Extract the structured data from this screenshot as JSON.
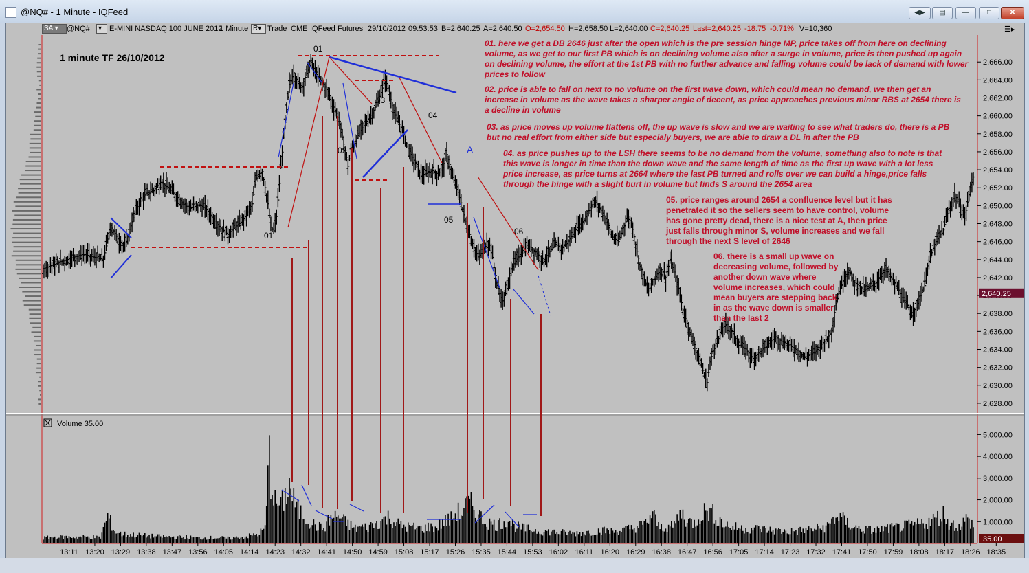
{
  "window": {
    "title": "@NQ# - 1 Minute - IQFeed"
  },
  "toolbar": {
    "sa": "SA",
    "symbol": "@NQ#",
    "description": "E-MINI NASDAQ 100 JUNE 2012",
    "interval": "1 Minute",
    "r_box": "R",
    "trade": "Trade",
    "exchange": "CME",
    "feed": "IQFeed",
    "type": "Futures",
    "date": "29/10/2012",
    "time": "09:53:53",
    "bid": "B=2,640.25",
    "ask": "A=2,640.50",
    "open": "O=2,654.50",
    "high": "H=2,658.50",
    "low": "L=2,640.00",
    "close": "C=2,640.25",
    "last": "Last=2,640.25",
    "change": "-18.75",
    "change_pct": "-0.71%",
    "volume": "V=10,360"
  },
  "colors": {
    "up_text": "#c00000",
    "note_text": "#c0102a",
    "price_tag": "#6b0f2e",
    "frame_red": "#d02020",
    "trend_blue": "#1f2fd8"
  },
  "chart_data": [
    {
      "type": "ohlc",
      "title": "1 minute  TF 26/10/2012",
      "ylim": [
        2627,
        2669
      ],
      "y_ticks": [
        "2,628.00",
        "2,630.00",
        "2,632.00",
        "2,634.00",
        "2,636.00",
        "2,638.00",
        "2,640.00",
        "2,642.00",
        "2,644.00",
        "2,646.00",
        "2,648.00",
        "2,650.00",
        "2,652.00",
        "2,654.00",
        "2,656.00",
        "2,658.00",
        "2,660.00",
        "2,662.00",
        "2,664.00",
        "2,666.00"
      ],
      "x_ticks": [
        "13:11",
        "13:20",
        "13:29",
        "13:38",
        "13:47",
        "13:56",
        "14:05",
        "14:14",
        "14:23",
        "14:32",
        "14:41",
        "14:50",
        "14:59",
        "15:08",
        "15:17",
        "15:26",
        "15:35",
        "15:44",
        "15:53",
        "16:02",
        "16:11",
        "16:20",
        "16:29",
        "16:38",
        "16:47",
        "16:56",
        "17:05",
        "17:14",
        "17:23",
        "17:32",
        "17:41",
        "17:50",
        "17:59",
        "18:08",
        "18:17",
        "18:26",
        "18:35"
      ],
      "last_price": "2,640.25",
      "close_path": [
        [
          0,
          2643.0
        ],
        [
          10,
          2643.6
        ],
        [
          20,
          2644.2
        ],
        [
          28,
          2644.6
        ],
        [
          35,
          2644.3
        ],
        [
          42,
          2644.0
        ],
        [
          47,
          2647.8
        ],
        [
          52,
          2646.3
        ],
        [
          57,
          2645.4
        ],
        [
          62,
          2648.2
        ],
        [
          67,
          2650.3
        ],
        [
          72,
          2651.4
        ],
        [
          77,
          2651.7
        ],
        [
          82,
          2652.6
        ],
        [
          86,
          2652.2
        ],
        [
          91,
          2651.4
        ],
        [
          97,
          2650.4
        ],
        [
          103,
          2649.7
        ],
        [
          109,
          2650.1
        ],
        [
          114,
          2649.6
        ],
        [
          119,
          2648.5
        ],
        [
          124,
          2647.5
        ],
        [
          129,
          2646.8
        ],
        [
          134,
          2647.6
        ],
        [
          139,
          2648.3
        ],
        [
          142,
          2649.0
        ],
        [
          146,
          2650.2
        ],
        [
          149,
          2653.4
        ],
        [
          153,
          2653.8
        ],
        [
          157,
          2650.2
        ],
        [
          159,
          2647.6
        ],
        [
          161,
          2647.2
        ],
        [
          163,
          2648.8
        ],
        [
          166,
          2654.3
        ],
        [
          169,
          2659.3
        ],
        [
          172,
          2663.5
        ],
        [
          175,
          2664.8
        ],
        [
          178,
          2663.6
        ],
        [
          181,
          2663.3
        ],
        [
          183,
          2664.3
        ],
        [
          185,
          2665.2
        ],
        [
          187,
          2666.0
        ],
        [
          189,
          2665.3
        ],
        [
          191,
          2664.6
        ],
        [
          193,
          2664.1
        ],
        [
          196,
          2663.5
        ],
        [
          199,
          2662.7
        ],
        [
          202,
          2661.3
        ],
        [
          205,
          2660.3
        ],
        [
          207,
          2659.4
        ],
        [
          209,
          2657.6
        ],
        [
          212,
          2655.4
        ],
        [
          213,
          2654.4
        ],
        [
          215,
          2656.0
        ],
        [
          218,
          2657.2
        ],
        [
          222,
          2658.4
        ],
        [
          226,
          2659.4
        ],
        [
          230,
          2660.3
        ],
        [
          233,
          2661.3
        ],
        [
          236,
          2662.6
        ],
        [
          239,
          2664.1
        ],
        [
          241,
          2663.1
        ],
        [
          243,
          2661.8
        ],
        [
          245,
          2660.4
        ],
        [
          248,
          2659.4
        ],
        [
          251,
          2658.4
        ],
        [
          255,
          2656.4
        ],
        [
          258,
          2655.4
        ],
        [
          261,
          2654.4
        ],
        [
          264,
          2653.4
        ],
        [
          268,
          2653.6
        ],
        [
          272,
          2653.9
        ],
        [
          276,
          2653.5
        ],
        [
          279,
          2654.2
        ],
        [
          282,
          2655.7
        ],
        [
          284,
          2654.6
        ],
        [
          286,
          2653.2
        ],
        [
          289,
          2652.1
        ],
        [
          292,
          2650.3
        ],
        [
          295,
          2648.3
        ],
        [
          298,
          2646.8
        ],
        [
          301,
          2645.3
        ],
        [
          304,
          2644.3
        ],
        [
          307,
          2644.9
        ],
        [
          310,
          2646.0
        ],
        [
          313,
          2645.4
        ],
        [
          315,
          2643.1
        ],
        [
          317,
          2641.4
        ],
        [
          319,
          2640.2
        ],
        [
          321,
          2639.4
        ],
        [
          323,
          2640.2
        ],
        [
          325,
          2641.4
        ],
        [
          327,
          2643.0
        ],
        [
          330,
          2643.8
        ],
        [
          334,
          2644.8
        ],
        [
          338,
          2645.6
        ],
        [
          342,
          2645.2
        ],
        [
          346,
          2644.5
        ],
        [
          350,
          2644.0
        ],
        [
          354,
          2644.9
        ],
        [
          358,
          2645.7
        ],
        [
          362,
          2645.3
        ],
        [
          366,
          2645.8
        ],
        [
          370,
          2646.8
        ],
        [
          374,
          2647.8
        ],
        [
          378,
          2648.4
        ],
        [
          382,
          2649.8
        ],
        [
          386,
          2650.4
        ],
        [
          390,
          2649.5
        ],
        [
          394,
          2648.2
        ],
        [
          398,
          2646.5
        ],
        [
          402,
          2646.0
        ],
        [
          405,
          2647.4
        ],
        [
          408,
          2648.6
        ],
        [
          411,
          2648.2
        ],
        [
          414,
          2645.7
        ],
        [
          417,
          2643.4
        ],
        [
          420,
          2641.8
        ],
        [
          423,
          2640.5
        ],
        [
          426,
          2641.5
        ],
        [
          429,
          2642.4
        ],
        [
          432,
          2642.9
        ],
        [
          435,
          2642.0
        ],
        [
          438,
          2643.9
        ],
        [
          441,
          2642.7
        ],
        [
          444,
          2640.8
        ],
        [
          447,
          2638.4
        ],
        [
          450,
          2636.9
        ],
        [
          453,
          2635.4
        ],
        [
          456,
          2634.1
        ],
        [
          459,
          2632.8
        ],
        [
          462,
          2631.1
        ],
        [
          464,
          2630.3
        ],
        [
          466,
          2632.6
        ],
        [
          469,
          2634.4
        ],
        [
          472,
          2635.2
        ],
        [
          475,
          2636.4
        ],
        [
          478,
          2636.8
        ],
        [
          481,
          2636.0
        ],
        [
          484,
          2635.2
        ],
        [
          488,
          2634.4
        ],
        [
          492,
          2633.8
        ],
        [
          496,
          2633.0
        ],
        [
          500,
          2633.6
        ],
        [
          504,
          2634.2
        ],
        [
          508,
          2634.8
        ],
        [
          512,
          2635.4
        ],
        [
          516,
          2634.9
        ],
        [
          520,
          2634.6
        ],
        [
          524,
          2634.2
        ],
        [
          528,
          2633.8
        ],
        [
          532,
          2633.1
        ],
        [
          536,
          2633.4
        ],
        [
          540,
          2633.8
        ],
        [
          544,
          2634.6
        ],
        [
          548,
          2635.2
        ],
        [
          551,
          2636.1
        ],
        [
          554,
          2639.1
        ],
        [
          557,
          2640.8
        ],
        [
          560,
          2642.1
        ],
        [
          563,
          2642.8
        ],
        [
          566,
          2641.6
        ],
        [
          570,
          2641.1
        ],
        [
          574,
          2640.6
        ],
        [
          578,
          2641.0
        ],
        [
          582,
          2641.4
        ],
        [
          586,
          2642.4
        ],
        [
          589,
          2642.9
        ],
        [
          592,
          2642.1
        ],
        [
          595,
          2641.3
        ],
        [
          598,
          2640.6
        ],
        [
          601,
          2639.4
        ],
        [
          604,
          2638.9
        ],
        [
          607,
          2638.1
        ],
        [
          610,
          2638.6
        ],
        [
          613,
          2640.0
        ],
        [
          616,
          2641.1
        ],
        [
          618,
          2643.3
        ],
        [
          620,
          2644.3
        ],
        [
          623,
          2645.7
        ],
        [
          626,
          2646.6
        ],
        [
          629,
          2647.3
        ],
        [
          632,
          2649.1
        ],
        [
          635,
          2650.3
        ],
        [
          637,
          2651.3
        ],
        [
          639,
          2650.5
        ],
        [
          642,
          2649.5
        ],
        [
          644,
          2648.6
        ],
        [
          646,
          2650.4
        ],
        [
          648,
          2652.0
        ],
        [
          650,
          2653.2
        ],
        [
          652,
          2652.5
        ]
      ],
      "annotations": [
        "01",
        "01",
        "02",
        "03",
        "04",
        "05",
        "06",
        "A"
      ]
    },
    {
      "type": "bar",
      "title": "Volume",
      "header_value": "35.00",
      "ylim": [
        0,
        5800
      ],
      "y_ticks": [
        "1,000.00",
        "2,000.00",
        "3,000.00",
        "4,000.00",
        "5,000.00"
      ],
      "last_value": "35.00",
      "volume_path": [
        [
          0,
          300
        ],
        [
          10,
          350
        ],
        [
          20,
          350
        ],
        [
          30,
          360
        ],
        [
          40,
          330
        ],
        [
          45,
          1480
        ],
        [
          50,
          660
        ],
        [
          55,
          500
        ],
        [
          60,
          480
        ],
        [
          70,
          420
        ],
        [
          80,
          380
        ],
        [
          90,
          350
        ],
        [
          100,
          340
        ],
        [
          110,
          300
        ],
        [
          120,
          320
        ],
        [
          130,
          280
        ],
        [
          140,
          350
        ],
        [
          150,
          500
        ],
        [
          155,
          800
        ],
        [
          158,
          4850
        ],
        [
          159,
          3500
        ],
        [
          162,
          2200
        ],
        [
          166,
          2000
        ],
        [
          169,
          2500
        ],
        [
          172,
          3200
        ],
        [
          175,
          2300
        ],
        [
          178,
          1800
        ],
        [
          182,
          1500
        ],
        [
          186,
          1200
        ],
        [
          190,
          950
        ],
        [
          196,
          800
        ],
        [
          200,
          1300
        ],
        [
          206,
          1500
        ],
        [
          210,
          1200
        ],
        [
          214,
          1000
        ],
        [
          218,
          800
        ],
        [
          222,
          900
        ],
        [
          226,
          850
        ],
        [
          230,
          1000
        ],
        [
          236,
          1200
        ],
        [
          241,
          1400
        ],
        [
          246,
          1150
        ],
        [
          250,
          950
        ],
        [
          255,
          900
        ],
        [
          260,
          850
        ],
        [
          265,
          800
        ],
        [
          270,
          900
        ],
        [
          275,
          850
        ],
        [
          280,
          1200
        ],
        [
          285,
          1300
        ],
        [
          289,
          1700
        ],
        [
          292,
          1600
        ],
        [
          295,
          2000
        ],
        [
          298,
          2150
        ],
        [
          301,
          1900
        ],
        [
          304,
          1600
        ],
        [
          307,
          1300
        ],
        [
          312,
          1100
        ],
        [
          316,
          1000
        ],
        [
          320,
          1100
        ],
        [
          325,
          1300
        ],
        [
          330,
          900
        ],
        [
          340,
          750
        ],
        [
          350,
          650
        ],
        [
          360,
          600
        ],
        [
          370,
          550
        ],
        [
          380,
          600
        ],
        [
          390,
          700
        ],
        [
          400,
          650
        ],
        [
          410,
          800
        ],
        [
          420,
          1000
        ],
        [
          426,
          1600
        ],
        [
          430,
          900
        ],
        [
          440,
          900
        ],
        [
          446,
          1700
        ],
        [
          450,
          1200
        ],
        [
          455,
          1100
        ],
        [
          460,
          1600
        ],
        [
          464,
          1800
        ],
        [
          468,
          1600
        ],
        [
          475,
          1100
        ],
        [
          480,
          900
        ],
        [
          490,
          800
        ],
        [
          500,
          800
        ],
        [
          510,
          700
        ],
        [
          520,
          650
        ],
        [
          530,
          700
        ],
        [
          540,
          800
        ],
        [
          548,
          900
        ],
        [
          552,
          1300
        ],
        [
          556,
          1500
        ],
        [
          560,
          1200
        ],
        [
          565,
          950
        ],
        [
          570,
          800
        ],
        [
          580,
          700
        ],
        [
          590,
          800
        ],
        [
          600,
          900
        ],
        [
          610,
          1000
        ],
        [
          620,
          1200
        ],
        [
          625,
          1400
        ],
        [
          629,
          1600
        ],
        [
          633,
          1100
        ],
        [
          640,
          900
        ],
        [
          645,
          1300
        ],
        [
          650,
          1000
        ]
      ]
    }
  ],
  "notes": [
    {
      "id": "01.",
      "text": "here we get a DB 2646 just after the open which is the pre session hinge MP, price takes off from here on declining volume, as we get to our first PB which is on declining volume also after a surge in volume, price is then pushed up again on declining volume, the effort at the 1st PB with no further advance and falling volume could be lack of demand with lower prices to follow"
    },
    {
      "id": "02.",
      "text": "price is able to fall on next to no volume on the first wave down, which could mean no demand, we then get an increase in volume as the wave takes a sharper angle of decent, as price approaches previous minor RBS at 2654 there is a decline in volume"
    },
    {
      "id": "03.",
      "text": "as price moves up volume flattens off, the up wave is slow and we are waiting to see what traders do, there is a PB but no real effort from either side but especialy buyers, we are able to draw a DL in after the PB"
    },
    {
      "id": "04.",
      "text": "as price pushes up to the LSH there seems to be no demand from the volume, something also to note is that this wave is longer in time than the down wave and the same length of time as the first up wave with a lot less price increase, as price turns at 2664 where the last PB turned and rolls over we can build a hinge,price falls through the hinge with a slight burt in volume but finds S around the 2654 area"
    },
    {
      "id": "05.",
      "text": "price ranges around 2654 a confluence level but it has penetrated it so the sellers seem to have control, volume has gone pretty dead, there is a nice test at A, then price just falls through minor S, volume increases and we fall through the next S level of 2646"
    },
    {
      "id": "06.",
      "text": "there is a small up wave on decreasing volume, followed by another down wave where volume increases, which could mean buyers are stepping back in as the wave down is smaller than the last 2"
    }
  ]
}
